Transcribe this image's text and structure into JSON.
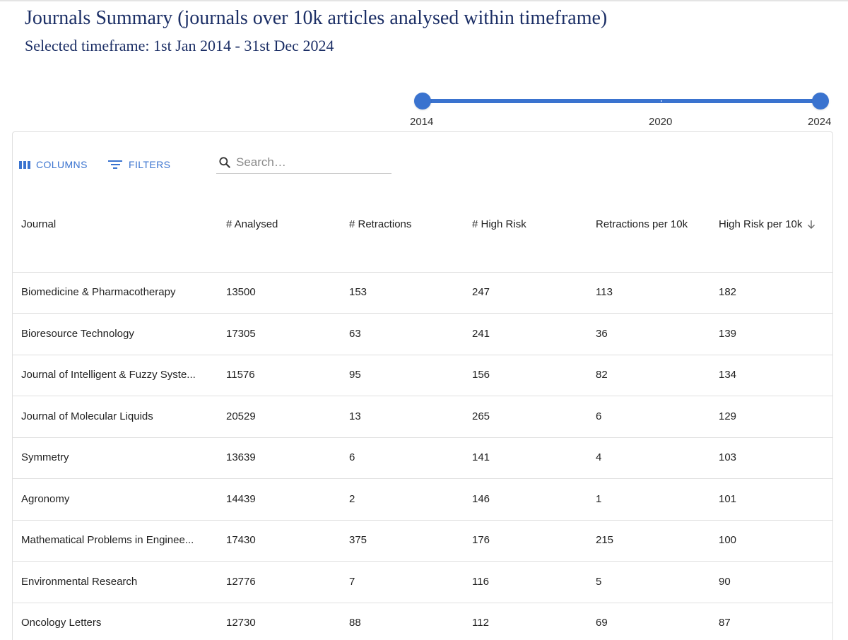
{
  "page": {
    "title": "Journals Summary (journals over 10k articles analysed within timeframe)",
    "subtitle": "Selected timeframe: 1st Jan 2014 - 31st Dec 2024"
  },
  "slider": {
    "min_label": "2014",
    "mid_label": "2020",
    "max_label": "2024",
    "range": [
      2014,
      2024
    ]
  },
  "toolbar": {
    "columns_label": "COLUMNS",
    "filters_label": "FILTERS",
    "search_placeholder": "Search…",
    "search_value": ""
  },
  "table": {
    "columns": [
      "Journal",
      "# Analysed",
      "# Retractions",
      "# High Risk",
      "Retractions per 10k",
      "High Risk per 10k"
    ],
    "sorted_column": "High Risk per 10k",
    "sort_direction": "descending",
    "rows": [
      [
        "Biomedicine & Pharmacotherapy",
        "13500",
        "153",
        "247",
        "113",
        "182"
      ],
      [
        "Bioresource Technology",
        "17305",
        "63",
        "241",
        "36",
        "139"
      ],
      [
        "Journal of Intelligent & Fuzzy Syste...",
        "11576",
        "95",
        "156",
        "82",
        "134"
      ],
      [
        "Journal of Molecular Liquids",
        "20529",
        "13",
        "265",
        "6",
        "129"
      ],
      [
        "Symmetry",
        "13639",
        "6",
        "141",
        "4",
        "103"
      ],
      [
        "Agronomy",
        "14439",
        "2",
        "146",
        "1",
        "101"
      ],
      [
        "Mathematical Problems in Enginee...",
        "17430",
        "375",
        "176",
        "215",
        "100"
      ],
      [
        "Environmental Research",
        "12776",
        "7",
        "116",
        "5",
        "90"
      ],
      [
        "Oncology Letters",
        "12730",
        "88",
        "112",
        "69",
        "87"
      ]
    ]
  },
  "colors": {
    "accent": "#3a73cf",
    "title": "#1c2f66"
  }
}
